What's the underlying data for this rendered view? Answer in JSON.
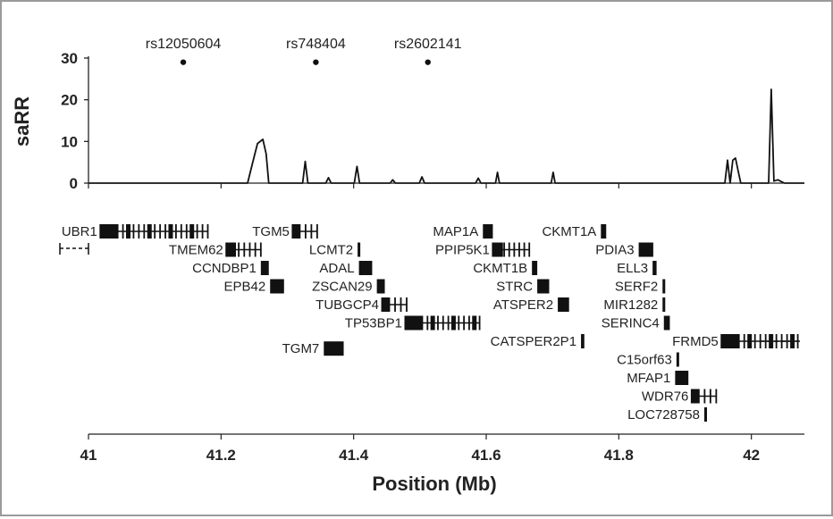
{
  "chart_data": {
    "type": "line",
    "xlabel": "Position (Mb)",
    "ylabel": "saRR",
    "xlim": [
      41.0,
      42.08
    ],
    "ylim": [
      0,
      30
    ],
    "x_ticks": [
      "41",
      "41.2",
      "41.4",
      "41.6",
      "41.8",
      "42"
    ],
    "y_ticks": [
      "0",
      "10",
      "20",
      "30"
    ],
    "grid": false,
    "snps": [
      {
        "label": "rs12050604",
        "x": 41.143,
        "y": 29
      },
      {
        "label": "rs748404",
        "x": 41.343,
        "y": 29
      },
      {
        "label": "rs2602141",
        "x": 41.512,
        "y": 29
      }
    ],
    "series": [
      {
        "x": [
          41.0,
          41.24,
          41.247,
          41.255,
          41.263,
          41.268,
          41.272,
          41.323,
          41.327,
          41.331,
          41.358,
          41.362,
          41.366,
          41.401,
          41.405,
          41.409,
          41.455,
          41.459,
          41.463,
          41.499,
          41.503,
          41.507,
          41.584,
          41.588,
          41.592,
          41.614,
          41.617,
          41.62,
          41.698,
          41.701,
          41.704,
          41.96,
          41.964,
          41.968,
          41.972,
          41.976,
          41.98,
          41.984,
          42.026,
          42.03,
          42.034,
          42.04,
          42.05,
          42.08
        ],
        "y": [
          0,
          0,
          4.5,
          9.5,
          10.5,
          7,
          0,
          0,
          5.2,
          0,
          0,
          1.3,
          0,
          0,
          4,
          0,
          0,
          0.8,
          0,
          0,
          1.5,
          0,
          0,
          1.2,
          0,
          0,
          2.6,
          0,
          0,
          2.6,
          0,
          0,
          5.5,
          0,
          5.5,
          6,
          3,
          0,
          0,
          22.5,
          0.5,
          0.8,
          0,
          0
        ]
      }
    ],
    "genes": [
      {
        "label": "UBR1",
        "start": 41.02,
        "end": 41.18,
        "row": 0,
        "label_side": "left"
      },
      {
        "label": "TGM5",
        "start": 41.31,
        "end": 41.345,
        "row": 0,
        "label_side": "left"
      },
      {
        "label": "MAP1A",
        "start": 41.595,
        "end": 41.61,
        "row": 0,
        "label_side": "left"
      },
      {
        "label": "CKMT1A",
        "start": 41.773,
        "end": 41.781,
        "row": 0,
        "label_side": "left"
      },
      {
        "label": "TMEM62",
        "start": 41.21,
        "end": 41.26,
        "row": 1,
        "label_side": "left"
      },
      {
        "label": "LCMT2",
        "start": 41.406,
        "end": 41.408,
        "row": 1,
        "label_side": "left"
      },
      {
        "label": "PPIP5K1",
        "start": 41.612,
        "end": 41.665,
        "row": 1,
        "label_side": "left"
      },
      {
        "label": "PDIA3",
        "start": 41.83,
        "end": 41.852,
        "row": 1,
        "label_side": "left"
      },
      {
        "label": "CCNDBP1",
        "start": 41.26,
        "end": 41.272,
        "row": 2,
        "label_side": "left"
      },
      {
        "label": "ADAL",
        "start": 41.408,
        "end": 41.428,
        "row": 2,
        "label_side": "left"
      },
      {
        "label": "CKMT1B",
        "start": 41.669,
        "end": 41.677,
        "row": 2,
        "label_side": "left"
      },
      {
        "label": "ELL3",
        "start": 41.851,
        "end": 41.857,
        "row": 2,
        "label_side": "left"
      },
      {
        "label": "EPB42",
        "start": 41.274,
        "end": 41.295,
        "row": 3,
        "label_side": "left"
      },
      {
        "label": "ZSCAN29",
        "start": 41.435,
        "end": 41.447,
        "row": 3,
        "label_side": "left"
      },
      {
        "label": "STRC",
        "start": 41.677,
        "end": 41.695,
        "row": 3,
        "label_side": "left"
      },
      {
        "label": "SERF2",
        "start": 41.866,
        "end": 41.868,
        "row": 3,
        "label_side": "left"
      },
      {
        "label": "TUBGCP4",
        "start": 41.445,
        "end": 41.48,
        "row": 4,
        "label_side": "left"
      },
      {
        "label": "ATSPER2",
        "start": 41.708,
        "end": 41.725,
        "row": 4,
        "label_side": "left"
      },
      {
        "label": "MIR1282",
        "start": 41.866,
        "end": 41.868,
        "row": 4,
        "label_side": "left"
      },
      {
        "label": "TP53BP1",
        "start": 41.48,
        "end": 41.59,
        "row": 5,
        "label_side": "left"
      },
      {
        "label": "SERINC4",
        "start": 41.868,
        "end": 41.877,
        "row": 5,
        "label_side": "left"
      },
      {
        "label": "CATSPER2P1",
        "start": 41.743,
        "end": 41.748,
        "row": 6,
        "label_side": "left"
      },
      {
        "label": "FRMD5",
        "start": 41.957,
        "end": 42.07,
        "row": 6,
        "label_side": "left"
      },
      {
        "label": "TGM7",
        "start": 41.355,
        "end": 41.385,
        "row": 6.4,
        "label_side": "left"
      },
      {
        "label": "C15orf63",
        "start": 41.887,
        "end": 41.889,
        "row": 7,
        "label_side": "left"
      },
      {
        "label": "MFAP1",
        "start": 41.885,
        "end": 41.905,
        "row": 8,
        "label_side": "left"
      },
      {
        "label": "WDR76",
        "start": 41.912,
        "end": 41.947,
        "row": 9,
        "label_side": "left"
      },
      {
        "label": "LOC728758",
        "start": 41.929,
        "end": 41.933,
        "row": 10,
        "label_side": "left"
      }
    ]
  }
}
